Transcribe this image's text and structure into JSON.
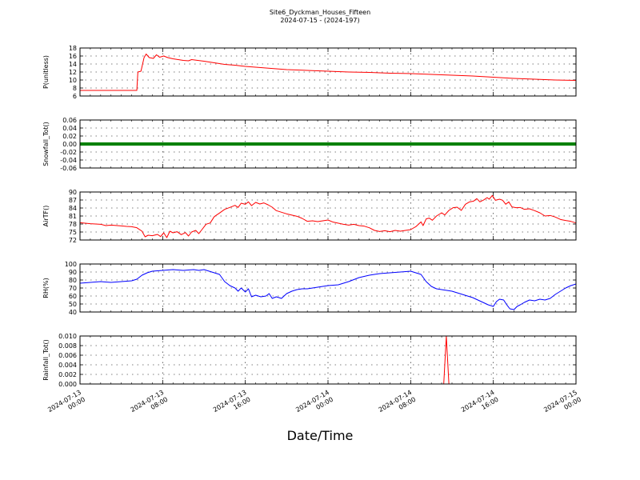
{
  "header": {
    "title": "Site6_Dyckman_Houses_Fifteen",
    "subtitle": "2024-07-15 - (2024-197)"
  },
  "chart_data": {
    "type": "line",
    "xlabel": "Date/Time",
    "x_ticks": [
      {
        "t": 0,
        "l1": "2024-07-13",
        "l2": "00:00"
      },
      {
        "t": 8,
        "l1": "2024-07-13",
        "l2": "08:00"
      },
      {
        "t": 16,
        "l1": "2024-07-13",
        "l2": "16:00"
      },
      {
        "t": 24,
        "l1": "2024-07-14",
        "l2": "00:00"
      },
      {
        "t": 32,
        "l1": "2024-07-14",
        "l2": "08:00"
      },
      {
        "t": 40,
        "l1": "2024-07-14",
        "l2": "16:00"
      },
      {
        "t": 48,
        "l1": "2024-07-15",
        "l2": "00:00"
      }
    ],
    "grid": true,
    "panels": [
      {
        "ylabel": "P(unitless)",
        "ylim": [
          6,
          18
        ],
        "yticks": [
          6,
          8,
          10,
          12,
          14,
          16,
          18
        ],
        "decimals": 0,
        "color": "#ff0000",
        "points": [
          [
            0,
            7.4
          ],
          [
            2,
            7.4
          ],
          [
            4,
            7.4
          ],
          [
            5.5,
            7.4
          ],
          [
            5.6,
            12.0
          ],
          [
            5.9,
            12.2
          ],
          [
            6.2,
            15.6
          ],
          [
            6.4,
            16.5
          ],
          [
            6.7,
            15.6
          ],
          [
            7.1,
            15.4
          ],
          [
            7.4,
            16.3
          ],
          [
            7.7,
            15.7
          ],
          [
            8.1,
            16.0
          ],
          [
            8.5,
            15.6
          ],
          [
            9,
            15.3
          ],
          [
            10,
            14.9
          ],
          [
            10.5,
            14.8
          ],
          [
            10.8,
            15.1
          ],
          [
            12,
            14.7
          ],
          [
            13,
            14.3
          ],
          [
            14,
            13.9
          ],
          [
            15,
            13.7
          ],
          [
            16,
            13.4
          ],
          [
            17,
            13.2
          ],
          [
            18,
            13.0
          ],
          [
            19,
            12.8
          ],
          [
            20,
            12.6
          ],
          [
            22,
            12.4
          ],
          [
            24,
            12.2
          ],
          [
            26,
            12.0
          ],
          [
            28,
            11.9
          ],
          [
            30,
            11.7
          ],
          [
            32,
            11.6
          ],
          [
            34,
            11.4
          ],
          [
            36,
            11.2
          ],
          [
            38,
            11.0
          ],
          [
            40,
            10.7
          ],
          [
            42,
            10.4
          ],
          [
            44,
            10.2
          ],
          [
            46,
            10.0
          ],
          [
            48,
            9.9
          ]
        ]
      },
      {
        "ylabel": "Snowfall_Tot()",
        "ylim": [
          -0.06,
          0.06
        ],
        "yticks": [
          -0.06,
          -0.04,
          -0.02,
          0.0,
          0.02,
          0.04,
          0.06
        ],
        "decimals": 2,
        "color": "#008000",
        "thick": true,
        "points": [
          [
            0,
            0
          ],
          [
            48,
            0
          ]
        ]
      },
      {
        "ylabel": "AirTF()",
        "ylim": [
          72,
          90
        ],
        "yticks": [
          72,
          75,
          78,
          81,
          84,
          87,
          90
        ],
        "decimals": 0,
        "color": "#ff0000",
        "points": [
          [
            0,
            78.5
          ],
          [
            1,
            78.1
          ],
          [
            2,
            77.9
          ],
          [
            2.5,
            77.4
          ],
          [
            3,
            77.6
          ],
          [
            4,
            77.3
          ],
          [
            4.5,
            77.1
          ],
          [
            5,
            77.0
          ],
          [
            5.5,
            76.6
          ],
          [
            6,
            75.3
          ],
          [
            6.3,
            73.2
          ],
          [
            6.6,
            73.8
          ],
          [
            7,
            73.6
          ],
          [
            7.5,
            74.1
          ],
          [
            7.8,
            73.3
          ],
          [
            8.1,
            74.7
          ],
          [
            8.4,
            72.9
          ],
          [
            8.7,
            75.3
          ],
          [
            9,
            74.7
          ],
          [
            9.4,
            75.1
          ],
          [
            9.8,
            74.0
          ],
          [
            10.2,
            74.8
          ],
          [
            10.5,
            73.5
          ],
          [
            10.8,
            75.0
          ],
          [
            11.2,
            75.6
          ],
          [
            11.5,
            74.4
          ],
          [
            11.8,
            75.9
          ],
          [
            12.2,
            77.9
          ],
          [
            12.6,
            78.4
          ],
          [
            13,
            80.8
          ],
          [
            13.5,
            82.1
          ],
          [
            14,
            83.5
          ],
          [
            14.5,
            84.2
          ],
          [
            15,
            85.0
          ],
          [
            15.3,
            84.2
          ],
          [
            15.6,
            85.8
          ],
          [
            16,
            85.4
          ],
          [
            16.3,
            86.3
          ],
          [
            16.6,
            84.9
          ],
          [
            17,
            86.1
          ],
          [
            17.4,
            85.5
          ],
          [
            17.8,
            85.9
          ],
          [
            18.2,
            85.2
          ],
          [
            18.6,
            84.3
          ],
          [
            19,
            83.0
          ],
          [
            19.5,
            82.4
          ],
          [
            20,
            81.8
          ],
          [
            21,
            80.9
          ],
          [
            21.5,
            80.1
          ],
          [
            22,
            79.0
          ],
          [
            22.5,
            79.2
          ],
          [
            23,
            78.9
          ],
          [
            24,
            79.5
          ],
          [
            24.5,
            78.7
          ],
          [
            25,
            78.3
          ],
          [
            25.5,
            77.9
          ],
          [
            26,
            77.6
          ],
          [
            26.5,
            77.9
          ],
          [
            27,
            77.4
          ],
          [
            27.5,
            77.2
          ],
          [
            28,
            76.6
          ],
          [
            28.5,
            75.6
          ],
          [
            29,
            75.2
          ],
          [
            29.5,
            75.5
          ],
          [
            30,
            75.1
          ],
          [
            30.5,
            75.6
          ],
          [
            31,
            75.3
          ],
          [
            31.5,
            75.6
          ],
          [
            32,
            75.9
          ],
          [
            32.5,
            77.0
          ],
          [
            33,
            78.8
          ],
          [
            33.2,
            77.4
          ],
          [
            33.5,
            79.9
          ],
          [
            33.8,
            80.2
          ],
          [
            34.1,
            79.4
          ],
          [
            34.5,
            81.0
          ],
          [
            35,
            82.2
          ],
          [
            35.3,
            81.4
          ],
          [
            35.7,
            83.1
          ],
          [
            36.1,
            84.1
          ],
          [
            36.5,
            84.3
          ],
          [
            36.9,
            83.1
          ],
          [
            37.3,
            85.4
          ],
          [
            37.7,
            86.3
          ],
          [
            38.1,
            86.6
          ],
          [
            38.4,
            87.5
          ],
          [
            38.7,
            86.3
          ],
          [
            39.1,
            87.1
          ],
          [
            39.4,
            87.9
          ],
          [
            39.6,
            87.3
          ],
          [
            39.9,
            88.7
          ],
          [
            40.2,
            86.9
          ],
          [
            40.6,
            87.3
          ],
          [
            40.9,
            86.9
          ],
          [
            41.2,
            85.4
          ],
          [
            41.5,
            86.3
          ],
          [
            41.8,
            84.4
          ],
          [
            42.2,
            84.1
          ],
          [
            42.6,
            84.2
          ],
          [
            43,
            83.5
          ],
          [
            43.5,
            83.7
          ],
          [
            44,
            83.0
          ],
          [
            44.5,
            82.2
          ],
          [
            45,
            81.0
          ],
          [
            45.5,
            81.2
          ],
          [
            46,
            80.6
          ],
          [
            46.5,
            79.7
          ],
          [
            47,
            79.3
          ],
          [
            47.5,
            79.0
          ],
          [
            48,
            78.4
          ]
        ]
      },
      {
        "ylabel": "RH(%)",
        "ylim": [
          40,
          100
        ],
        "yticks": [
          40,
          50,
          60,
          70,
          80,
          90,
          100
        ],
        "decimals": 0,
        "color": "#0000ff",
        "points": [
          [
            0,
            76
          ],
          [
            1,
            77
          ],
          [
            2,
            78
          ],
          [
            3,
            77
          ],
          [
            4,
            78
          ],
          [
            5,
            79
          ],
          [
            5.5,
            81
          ],
          [
            6,
            86
          ],
          [
            6.5,
            89
          ],
          [
            7,
            91
          ],
          [
            8,
            92
          ],
          [
            9,
            93
          ],
          [
            10,
            92
          ],
          [
            11,
            93
          ],
          [
            11.5,
            92
          ],
          [
            12,
            93
          ],
          [
            12.5,
            91
          ],
          [
            13,
            89
          ],
          [
            13.5,
            87
          ],
          [
            14,
            78
          ],
          [
            14.5,
            73
          ],
          [
            15,
            70
          ],
          [
            15.3,
            66
          ],
          [
            15.6,
            70
          ],
          [
            16,
            65
          ],
          [
            16.3,
            69
          ],
          [
            16.6,
            59
          ],
          [
            17,
            61
          ],
          [
            17.5,
            59
          ],
          [
            18,
            60
          ],
          [
            18.3,
            63
          ],
          [
            18.6,
            57
          ],
          [
            19,
            59
          ],
          [
            19.5,
            57
          ],
          [
            20,
            63
          ],
          [
            20.5,
            66
          ],
          [
            21,
            68
          ],
          [
            21.5,
            69
          ],
          [
            22,
            69
          ],
          [
            23,
            71
          ],
          [
            24,
            73
          ],
          [
            25,
            74
          ],
          [
            26,
            78
          ],
          [
            27,
            83
          ],
          [
            28,
            86
          ],
          [
            29,
            88
          ],
          [
            30,
            89
          ],
          [
            31,
            90
          ],
          [
            32,
            91
          ],
          [
            32.5,
            89
          ],
          [
            33,
            87
          ],
          [
            33.5,
            78
          ],
          [
            34,
            72
          ],
          [
            34.5,
            69
          ],
          [
            35,
            68
          ],
          [
            35.5,
            67
          ],
          [
            36,
            66
          ],
          [
            37,
            62
          ],
          [
            38,
            58
          ],
          [
            38.5,
            55
          ],
          [
            39,
            52
          ],
          [
            39.5,
            49
          ],
          [
            40,
            47
          ],
          [
            40.3,
            53
          ],
          [
            40.6,
            56
          ],
          [
            41,
            55
          ],
          [
            41.3,
            49
          ],
          [
            41.6,
            44
          ],
          [
            42,
            43
          ],
          [
            42.3,
            47
          ],
          [
            42.6,
            49
          ],
          [
            43,
            52
          ],
          [
            43.5,
            55
          ],
          [
            44,
            54
          ],
          [
            44.5,
            56
          ],
          [
            45,
            55
          ],
          [
            45.5,
            57
          ],
          [
            46,
            62
          ],
          [
            46.5,
            66
          ],
          [
            47,
            70
          ],
          [
            47.5,
            73
          ],
          [
            48,
            75
          ]
        ]
      },
      {
        "ylabel": "Rainfall_Tot()",
        "ylim": [
          0,
          0.01
        ],
        "yticks": [
          0.0,
          0.002,
          0.004,
          0.006,
          0.008,
          0.01
        ],
        "decimals": 3,
        "color": "#ff0000",
        "points": [
          [
            0,
            0
          ],
          [
            35.2,
            0
          ],
          [
            35.45,
            0.01
          ],
          [
            35.7,
            0
          ],
          [
            48,
            0
          ]
        ]
      }
    ]
  }
}
